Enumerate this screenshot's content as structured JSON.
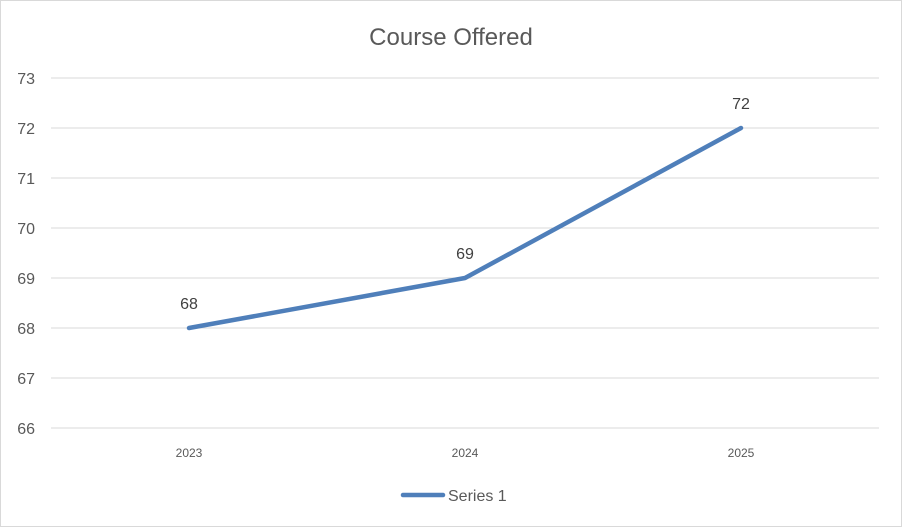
{
  "chart_data": {
    "type": "line",
    "title": "Course Offered",
    "xlabel": "",
    "ylabel": "",
    "categories": [
      "2023",
      "2024",
      "2025"
    ],
    "series": [
      {
        "name": "Series 1",
        "values": [
          68,
          69,
          72
        ],
        "color": "#4f7fba"
      }
    ],
    "ylim": [
      66,
      73
    ],
    "y_ticks": [
      "66",
      "67",
      "68",
      "69",
      "70",
      "71",
      "72",
      "73"
    ],
    "data_labels": [
      "68",
      "69",
      "72"
    ],
    "grid": true,
    "legend_position": "bottom"
  }
}
